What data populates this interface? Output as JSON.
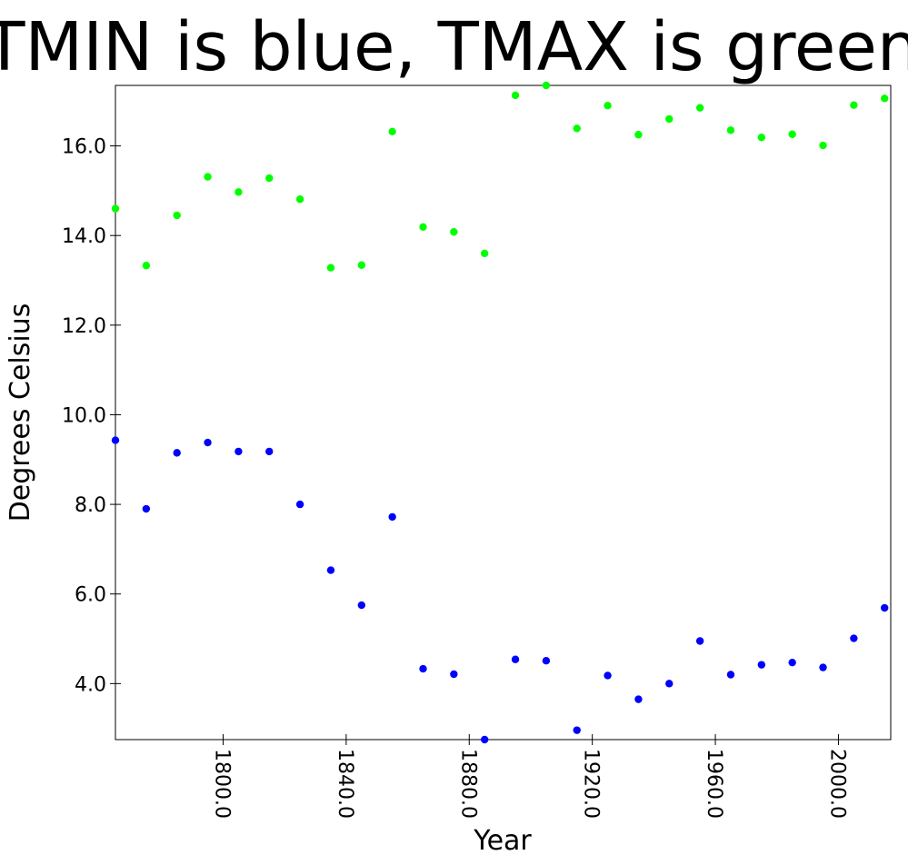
{
  "chart_data": {
    "type": "scatter",
    "title": "TMIN is blue, TMAX is green",
    "xlabel": "Year",
    "ylabel": "Degrees Celsius",
    "xlim": [
      1765,
      2017
    ],
    "ylim": [
      2.75,
      17.35
    ],
    "xticks": [
      1800,
      1840,
      1880,
      1920,
      1960,
      2000
    ],
    "xtick_labels": [
      "1800.0",
      "1840.0",
      "1880.0",
      "1920.0",
      "1960.0",
      "2000.0"
    ],
    "yticks": [
      4,
      6,
      8,
      10,
      12,
      14,
      16
    ],
    "ytick_labels": [
      "4.0",
      "6.0",
      "8.0",
      "10.0",
      "12.0",
      "14.0",
      "16.0"
    ],
    "grid": false,
    "legend": "none",
    "series": [
      {
        "color": "#0000ff",
        "x": [
          1765,
          1775,
          1785,
          1795,
          1805,
          1815,
          1825,
          1835,
          1845,
          1855,
          1865,
          1875,
          1885,
          1895,
          1905,
          1915,
          1925,
          1935,
          1945,
          1955,
          1965,
          1975,
          1985,
          1995,
          2005,
          2015
        ],
        "y": [
          9.43,
          7.9,
          9.15,
          9.38,
          9.18,
          9.18,
          8.0,
          6.53,
          5.75,
          7.72,
          4.33,
          4.21,
          2.75,
          4.54,
          4.51,
          2.96,
          4.18,
          3.65,
          4.0,
          4.95,
          4.2,
          4.42,
          4.47,
          4.36,
          5.01,
          5.69
        ]
      },
      {
        "color": "#00ff00",
        "x": [
          1765,
          1775,
          1785,
          1795,
          1805,
          1815,
          1825,
          1835,
          1845,
          1855,
          1865,
          1875,
          1885,
          1895,
          1905,
          1915,
          1925,
          1935,
          1945,
          1955,
          1965,
          1975,
          1985,
          1995,
          2005,
          2015
        ],
        "y": [
          14.6,
          13.33,
          14.45,
          15.31,
          14.97,
          15.28,
          14.81,
          13.28,
          13.34,
          16.32,
          14.19,
          14.08,
          13.6,
          17.13,
          17.35,
          16.39,
          16.9,
          16.25,
          16.6,
          16.85,
          16.35,
          16.19,
          16.26,
          16.01,
          16.91,
          17.06
        ]
      }
    ]
  }
}
